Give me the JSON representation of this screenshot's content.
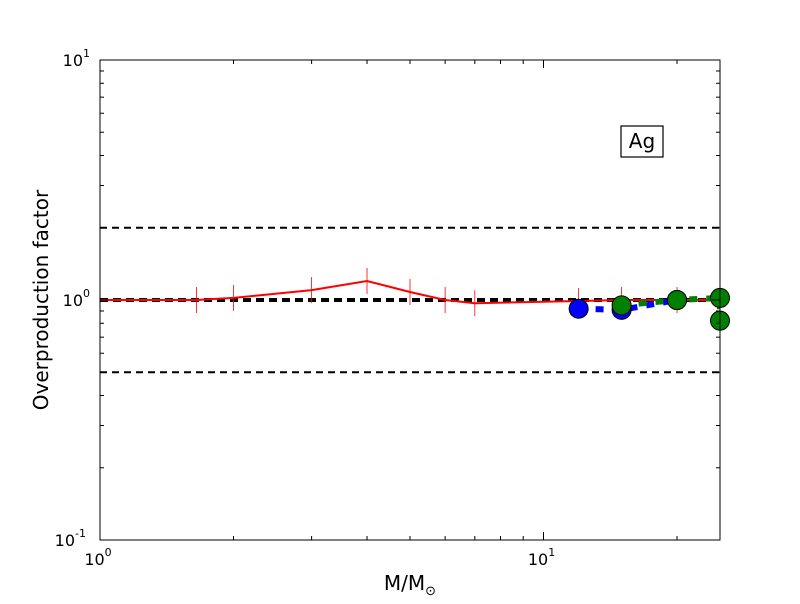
{
  "chart_data": {
    "type": "line",
    "title": "",
    "xlabel": "M/M",
    "xlabel_sub": "⊙",
    "ylabel": "Overproduction factor",
    "xscale": "log",
    "yscale": "log",
    "xlim": [
      1,
      25
    ],
    "ylim": [
      0.1,
      10
    ],
    "x_ticks": [
      {
        "value": 1,
        "base": "10",
        "exp": "0"
      },
      {
        "value": 10,
        "base": "10",
        "exp": "1"
      }
    ],
    "y_ticks": [
      {
        "value": 0.1,
        "base": "10",
        "exp": "-1"
      },
      {
        "value": 1,
        "base": "10",
        "exp": "0"
      },
      {
        "value": 10,
        "base": "10",
        "exp": "1"
      }
    ],
    "grid": false,
    "annotation": "Ag",
    "reference_lines": [
      {
        "y": 2,
        "style": "dashed",
        "color": "#000000",
        "width": 2
      },
      {
        "y": 1,
        "style": "dashed",
        "color": "#000000",
        "width": 4
      },
      {
        "y": 0.5,
        "style": "dashed",
        "color": "#000000",
        "width": 2
      }
    ],
    "series": [
      {
        "style": "solid",
        "color": "#ff0000",
        "marker": "vline",
        "x": [
          1.0,
          1.65,
          2.0,
          3.0,
          4.0,
          5.0,
          6.0,
          7.0,
          12.0,
          15.0,
          20.0,
          25.0
        ],
        "y": [
          1.0,
          1.0,
          1.02,
          1.1,
          1.2,
          1.08,
          1.0,
          0.97,
          0.99,
          1.0,
          1.0,
          1.0
        ]
      },
      {
        "style": "dotted",
        "color": "#0000ff",
        "marker": "circle",
        "x": [
          12.0,
          15.0,
          20.0
        ],
        "y": [
          0.92,
          0.91,
          1.0
        ]
      },
      {
        "style": "dotted",
        "color": "#008000",
        "marker": "circle",
        "x": [
          15.0,
          20.0,
          25.0,
          25.0
        ],
        "y": [
          0.95,
          1.0,
          1.02,
          0.82
        ]
      }
    ]
  }
}
